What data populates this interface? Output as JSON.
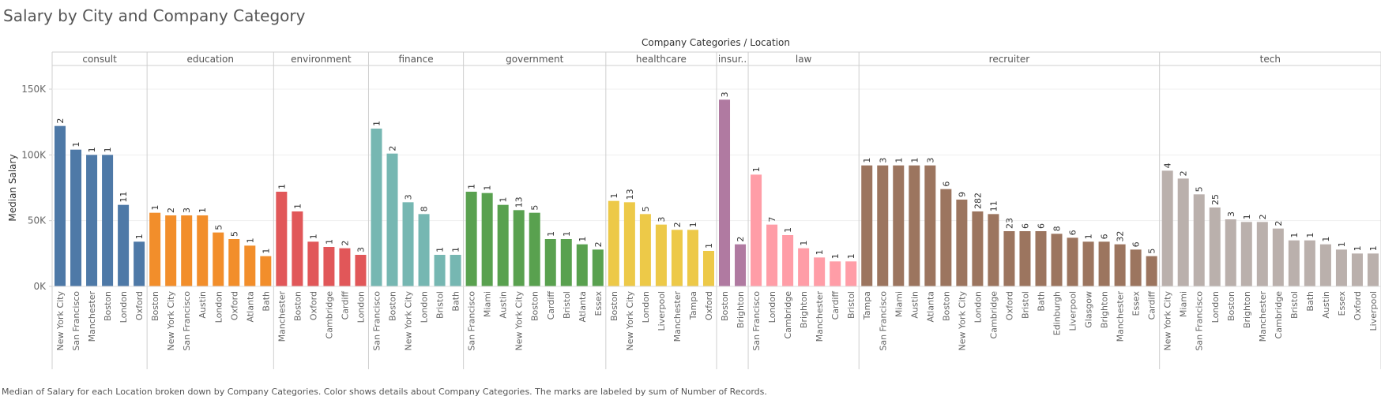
{
  "title": "Salary by City and Company Category",
  "caption": "Median of Salary for each Location broken down by Company Categories.  Color shows details about Company Categories.  The marks are labeled by sum of Number of Records.",
  "chart_data": {
    "type": "bar",
    "column_header": "Company Categories / Location",
    "ylabel": "Median Salary",
    "ylim": [
      0,
      168000
    ],
    "yticks": [
      0,
      50000,
      100000,
      150000
    ],
    "ytick_labels": [
      "0K",
      "50K",
      "100K",
      "150K"
    ],
    "grid": true,
    "legend": "none",
    "groups": [
      {
        "name": "consult",
        "header": "consult",
        "color": "#4e79a7",
        "locations": [
          "New York City",
          "San Francisco",
          "Manchester",
          "Boston",
          "London",
          "Oxford"
        ],
        "values": [
          122000,
          104000,
          100000,
          100000,
          62000,
          34000
        ],
        "labels": [
          "2",
          "1",
          "1",
          "1",
          "11",
          "1"
        ]
      },
      {
        "name": "education",
        "header": "education",
        "color": "#f28e2b",
        "locations": [
          "Boston",
          "New York City",
          "San Francisco",
          "Austin",
          "London",
          "Oxford",
          "Atlanta",
          "Bath"
        ],
        "values": [
          56000,
          54000,
          54000,
          54000,
          41000,
          36000,
          31000,
          23000
        ],
        "labels": [
          "1",
          "2",
          "3",
          "1",
          "5",
          "5",
          "1",
          "1"
        ]
      },
      {
        "name": "environment",
        "header": "environment",
        "color": "#e15759",
        "locations": [
          "Manchester",
          "Boston",
          "Oxford",
          "Cambridge",
          "Cardiff",
          "London"
        ],
        "values": [
          72000,
          57000,
          34000,
          30000,
          29000,
          24000
        ],
        "labels": [
          "1",
          "1",
          "1",
          "1",
          "2",
          "3"
        ]
      },
      {
        "name": "finance",
        "header": "finance",
        "color": "#76b7b2",
        "locations": [
          "San Francisco",
          "Boston",
          "New York City",
          "London",
          "Bristol",
          "Bath"
        ],
        "values": [
          120000,
          101000,
          64000,
          55000,
          24000,
          24000
        ],
        "labels": [
          "1",
          "2",
          "3",
          "8",
          "1",
          "1"
        ]
      },
      {
        "name": "government",
        "header": "government",
        "color": "#59a14f",
        "locations": [
          "San Francisco",
          "Miami",
          "Austin",
          "New York City",
          "Boston",
          "Cardiff",
          "Bristol",
          "Atlanta",
          "Essex"
        ],
        "values": [
          72000,
          71000,
          62000,
          58000,
          56000,
          36000,
          36000,
          32000,
          28000
        ],
        "labels": [
          "1",
          "1",
          "1",
          "13",
          "5",
          "1",
          "1",
          "1",
          "2"
        ]
      },
      {
        "name": "healthcare",
        "header": "healthcare",
        "color": "#edc948",
        "locations": [
          "Boston",
          "New York City",
          "London",
          "Liverpool",
          "Manchester",
          "Tampa",
          "Oxford"
        ],
        "values": [
          65000,
          64000,
          55000,
          47000,
          43000,
          43000,
          27000
        ],
        "labels": [
          "1",
          "13",
          "5",
          "3",
          "2",
          "1",
          "1"
        ]
      },
      {
        "name": "insurance",
        "header": "insur..",
        "color": "#b07aa1",
        "locations": [
          "Boston",
          "Brighton"
        ],
        "values": [
          142000,
          32000
        ],
        "labels": [
          "3",
          "2"
        ]
      },
      {
        "name": "law",
        "header": "law",
        "color": "#ff9da7",
        "locations": [
          "San Francisco",
          "London",
          "Cambridge",
          "Brighton",
          "Manchester",
          "Cardiff",
          "Bristol"
        ],
        "values": [
          85000,
          47000,
          39000,
          29000,
          22000,
          19000,
          19000
        ],
        "labels": [
          "1",
          "7",
          "1",
          "1",
          "1",
          "1",
          "1"
        ]
      },
      {
        "name": "recruiter",
        "header": "recruiter",
        "color": "#9c755f",
        "locations": [
          "Tampa",
          "San Francisco",
          "Miami",
          "Austin",
          "Atlanta",
          "Boston",
          "New York City",
          "London",
          "Cambridge",
          "Oxford",
          "Bristol",
          "Bath",
          "Edinburgh",
          "Liverpool",
          "Glasgow",
          "Brighton",
          "Manchester",
          "Essex",
          "Cardiff"
        ],
        "values": [
          92000,
          92000,
          92000,
          92000,
          92000,
          74000,
          66000,
          57000,
          55000,
          42000,
          42000,
          42000,
          40000,
          37000,
          34000,
          34000,
          32000,
          28000,
          23000
        ],
        "labels": [
          "1",
          "3",
          "1",
          "1",
          "3",
          "6",
          "9",
          "282",
          "11",
          "23",
          "6",
          "6",
          "8",
          "6",
          "1",
          "6",
          "32",
          "6",
          "5"
        ]
      },
      {
        "name": "tech",
        "header": "tech",
        "color": "#bab0ac",
        "locations": [
          "New York City",
          "Miami",
          "San Francisco",
          "London",
          "Boston",
          "Brighton",
          "Manchester",
          "Cambridge",
          "Bristol",
          "Bath",
          "Austin",
          "Essex",
          "Oxford",
          "Liverpool"
        ],
        "values": [
          88000,
          82000,
          70000,
          60000,
          51000,
          49000,
          49000,
          44000,
          35000,
          35000,
          32000,
          28000,
          25000,
          25000
        ],
        "labels": [
          "4",
          "2",
          "5",
          "25",
          "3",
          "1",
          "2",
          "2",
          "1",
          "1",
          "1",
          "1",
          "1",
          "1"
        ]
      }
    ]
  }
}
